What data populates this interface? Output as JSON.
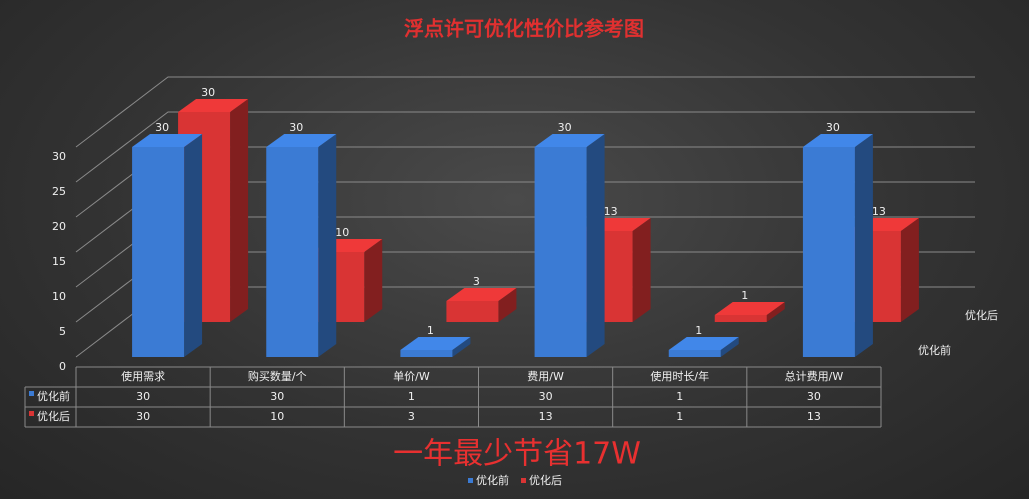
{
  "chart_data": {
    "type": "bar3d",
    "title": "浮点许可优化性价比参考图",
    "annotation": "一年最少节省17W",
    "categories": [
      "使用需求",
      "购买数量/个",
      "单价/W",
      "费用/W",
      "使用时长/年",
      "总计费用/W"
    ],
    "series": [
      {
        "name": "优化前",
        "color": "#3b7bd4",
        "values": [
          30,
          30,
          1,
          30,
          1,
          30
        ]
      },
      {
        "name": "优化后",
        "color": "#d93434",
        "values": [
          30,
          10,
          3,
          13,
          1,
          13
        ]
      }
    ],
    "ylim": [
      0,
      30
    ],
    "yticks": [
      0,
      5,
      10,
      15,
      20,
      25,
      30
    ],
    "grid": true,
    "legend": "bottom"
  }
}
